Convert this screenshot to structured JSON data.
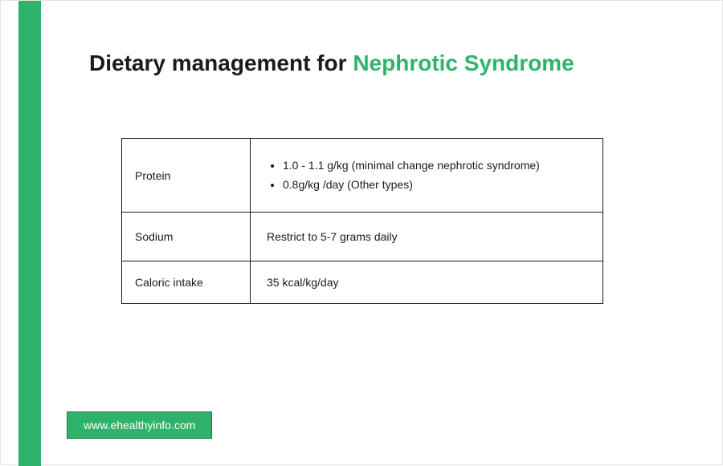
{
  "accent_color": "#2fb36b",
  "text_color": "#1a1a1a",
  "background_color": "#ffffff",
  "title": {
    "prefix": "Dietary management for ",
    "highlight": "Nephrotic Syndrome"
  },
  "table": {
    "rows": [
      {
        "label": "Protein",
        "type": "bullets",
        "items": [
          "1.0 - 1.1 g/kg (minimal change nephrotic syndrome)",
          "0.8g/kg /day (Other types)"
        ]
      },
      {
        "label": "Sodium",
        "type": "text",
        "value": "Restrict to 5-7 grams daily"
      },
      {
        "label": "Caloric intake",
        "type": "text",
        "value": "35 kcal/kg/day"
      }
    ]
  },
  "footer": {
    "url": "www.ehealthyinfo.com"
  }
}
